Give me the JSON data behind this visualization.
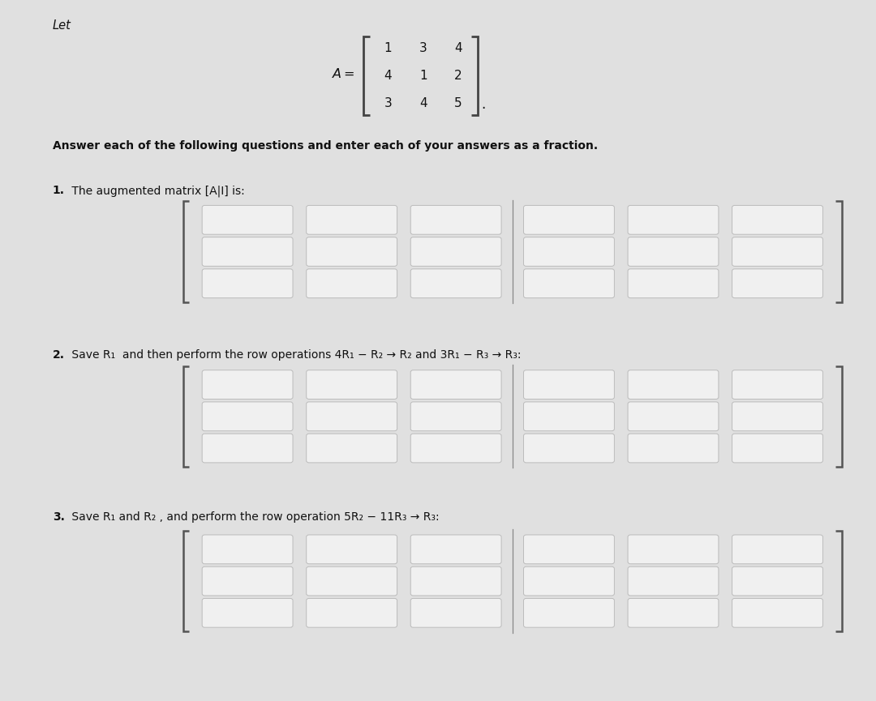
{
  "bg_color": "#e0e0e0",
  "page_bg": "#ebebeb",
  "box_fill": "#f0f0f0",
  "box_edge": "#bbbbbb",
  "bracket_color": "#555555",
  "sep_line_color": "#888888",
  "text_color": "#111111",
  "title_text": "Let",
  "matrix_label": "A =",
  "matrix_rows": [
    [
      1,
      3,
      4
    ],
    [
      4,
      1,
      2
    ],
    [
      3,
      4,
      5
    ]
  ],
  "instruction": "Answer each of the following questions and enter each of your answers as a fraction.",
  "q1_label_bold": "1.",
  "q1_label_rest": " The augmented matrix [A|I] is:",
  "q2_label_bold": "2.",
  "q2_label_rest": " Save R₁  and then perform the row operations 4R₁ − R₂ → R₂ and 3R₁ − R₃ → R₃:",
  "q3_label_bold": "3.",
  "q3_label_rest": " Save R₁ and R₂ , and perform the row operation 5R₂ − 11R₃ → R₃:",
  "num_cols": 6,
  "num_rows": 3,
  "separator_col": 3,
  "figsize": [
    10.8,
    8.65
  ],
  "dpi": 100
}
